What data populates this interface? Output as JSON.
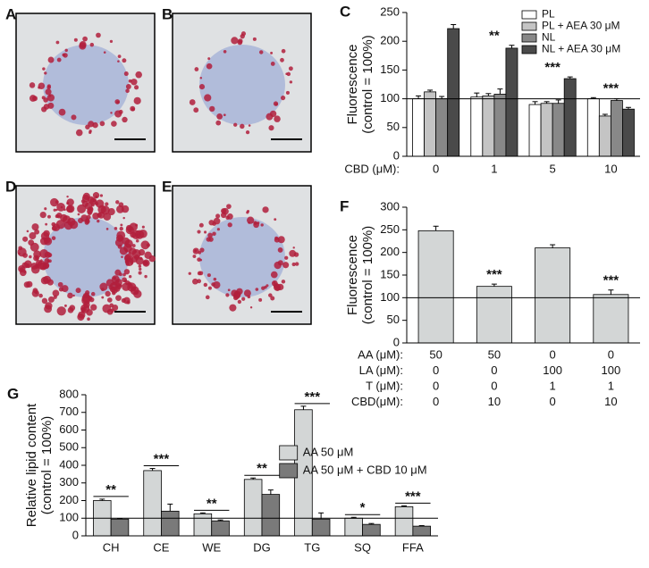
{
  "image_panels": [
    {
      "label": "A"
    },
    {
      "label": "B"
    },
    {
      "label": "D"
    },
    {
      "label": "E"
    }
  ],
  "chart_data": [
    {
      "type": "bar",
      "panel": "C",
      "ylabel": [
        "Fluorescence",
        "(control = 100%)"
      ],
      "xlabel": "CBD (μM):",
      "categories": [
        "0",
        "1",
        "5",
        "10"
      ],
      "ylim": [
        0,
        250
      ],
      "yticks": [
        0,
        50,
        100,
        150,
        200,
        250
      ],
      "hline": 100,
      "legend": "upper right",
      "series": [
        {
          "name": "PL",
          "color": "#ffffff",
          "values": [
            100,
            103,
            90,
            100
          ],
          "errors": [
            5,
            7,
            5,
            2
          ]
        },
        {
          "name": "PL + AEA 30 μM",
          "color": "#c4c4c4",
          "values": [
            112,
            105,
            92,
            70
          ],
          "errors": [
            3,
            4,
            3,
            3
          ]
        },
        {
          "name": "NL",
          "color": "#888888",
          "values": [
            100,
            108,
            92,
            97
          ],
          "errors": [
            4,
            9,
            6,
            3
          ]
        },
        {
          "name": "NL + AEA 30 μM",
          "color": "#4a4a4a",
          "values": [
            222,
            188,
            135,
            82
          ],
          "errors": [
            7,
            5,
            3,
            3
          ]
        }
      ],
      "significance": [
        null,
        "**",
        "***",
        "***"
      ]
    },
    {
      "type": "bar",
      "panel": "F",
      "ylabel": [
        "Fluorescence",
        "(control = 100%)"
      ],
      "categories": [
        null,
        null,
        null,
        null
      ],
      "ylim": [
        0,
        300
      ],
      "yticks": [
        0,
        50,
        100,
        150,
        200,
        250,
        300
      ],
      "hline": 100,
      "color": "#d3d6d6",
      "values": [
        248,
        125,
        210,
        107
      ],
      "errors": [
        10,
        5,
        7,
        10
      ],
      "significance": [
        null,
        "***",
        null,
        "***"
      ],
      "conditions": [
        {
          "label": "AA (μM):",
          "values": [
            50,
            50,
            0,
            0
          ]
        },
        {
          "label": "LA (μM):",
          "values": [
            0,
            0,
            100,
            100
          ]
        },
        {
          "label": "T (μM):",
          "values": [
            0,
            0,
            1,
            1
          ]
        },
        {
          "label": "CBD(μM):",
          "values": [
            0,
            10,
            0,
            10
          ]
        }
      ]
    },
    {
      "type": "bar",
      "panel": "G",
      "ylabel": [
        "Relative lipid content",
        "(control = 100%)"
      ],
      "categories": [
        "CH",
        "CE",
        "WE",
        "DG",
        "TG",
        "SQ",
        "FFA"
      ],
      "ylim": [
        0,
        800
      ],
      "yticks": [
        0,
        100,
        200,
        300,
        400,
        500,
        600,
        700,
        800
      ],
      "hline": 100,
      "legend": "center right",
      "series": [
        {
          "name": "AA 50 μM",
          "color": "#d3d6d6",
          "values": [
            200,
            370,
            125,
            320,
            715,
            100,
            165
          ],
          "errors": [
            8,
            12,
            5,
            8,
            20,
            5,
            5
          ]
        },
        {
          "name": "AA  50 μM + CBD 10 μM",
          "color": "#7a7a7a",
          "values": [
            95,
            140,
            85,
            235,
            95,
            65,
            55
          ],
          "errors": [
            3,
            40,
            5,
            25,
            35,
            5,
            3
          ]
        }
      ],
      "significance": [
        "**",
        "***",
        "**",
        "**",
        "***",
        "*",
        "***"
      ]
    }
  ]
}
